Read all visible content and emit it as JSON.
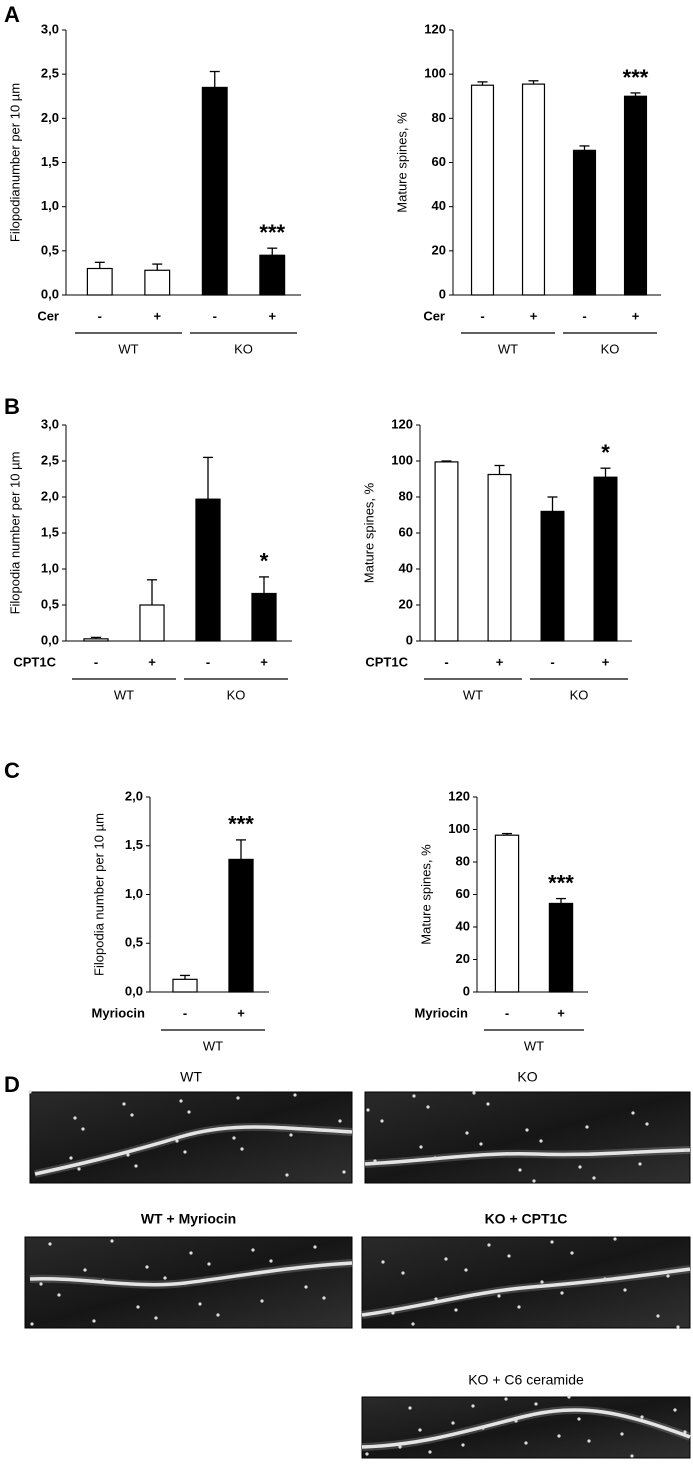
{
  "panel_labels": [
    "A",
    "B",
    "C",
    "D"
  ],
  "chart_data": [
    {
      "type": "bar",
      "ylabel": "Filopodianumber per 10 µm",
      "treatment": "Cer",
      "categories": [
        "-",
        "+",
        "-",
        "+"
      ],
      "group_labels": [
        "WT",
        "WT",
        "KO",
        "KO"
      ],
      "values": [
        0.3,
        0.28,
        2.35,
        0.45
      ],
      "errors": [
        0.07,
        0.07,
        0.18,
        0.08
      ],
      "significance": [
        null,
        null,
        null,
        "***"
      ],
      "colors": [
        "#ffffff",
        "#ffffff",
        "#000000",
        "#000000"
      ],
      "ylim": [
        0,
        3
      ],
      "yticks": [
        {
          "value": 0,
          "label": "0,0"
        },
        {
          "value": 0.5,
          "label": "0,5"
        },
        {
          "value": 1,
          "label": "1,0"
        },
        {
          "value": 1.5,
          "label": "1,5"
        },
        {
          "value": 2,
          "label": "2,0"
        },
        {
          "value": 2.5,
          "label": "2,5"
        },
        {
          "value": 3,
          "label": "3,0"
        }
      ]
    },
    {
      "type": "bar",
      "ylabel": "Mature spines, %",
      "treatment": "Cer",
      "categories": [
        "-",
        "+",
        "-",
        "+"
      ],
      "group_labels": [
        "WT",
        "WT",
        "KO",
        "KO"
      ],
      "values": [
        95,
        95.5,
        65.5,
        90
      ],
      "errors": [
        1.5,
        1.5,
        2,
        1.5
      ],
      "significance": [
        null,
        null,
        null,
        "***"
      ],
      "colors": [
        "#ffffff",
        "#ffffff",
        "#000000",
        "#000000"
      ],
      "ylim": [
        0,
        120
      ],
      "yticks": [
        0,
        20,
        40,
        60,
        80,
        100,
        120
      ]
    },
    {
      "type": "bar",
      "ylabel": "Filopodia number per 10 µm",
      "treatment": "CPT1C",
      "categories": [
        "-",
        "+",
        "-",
        "+"
      ],
      "group_labels": [
        "WT",
        "WT",
        "KO",
        "KO"
      ],
      "values": [
        0.03,
        0.5,
        1.97,
        0.66
      ],
      "errors": [
        0.02,
        0.35,
        0.58,
        0.23
      ],
      "significance": [
        null,
        null,
        null,
        "*"
      ],
      "colors": [
        "#ffffff",
        "#ffffff",
        "#000000",
        "#000000"
      ],
      "ylim": [
        0,
        3
      ],
      "yticks": [
        {
          "value": 0,
          "label": "0,0"
        },
        {
          "value": 0.5,
          "label": "0,5"
        },
        {
          "value": 1,
          "label": "1,0"
        },
        {
          "value": 1.5,
          "label": "1,5"
        },
        {
          "value": 2,
          "label": "2,0"
        },
        {
          "value": 2.5,
          "label": "2,5"
        },
        {
          "value": 3,
          "label": "3,0"
        }
      ]
    },
    {
      "type": "bar",
      "ylabel": "Mature spines, %",
      "treatment": "CPT1C",
      "categories": [
        "-",
        "+",
        "-",
        "+"
      ],
      "group_labels": [
        "WT",
        "WT",
        "KO",
        "KO"
      ],
      "values": [
        99.5,
        92.5,
        72,
        91
      ],
      "errors": [
        0.5,
        5,
        8,
        5
      ],
      "significance": [
        null,
        null,
        null,
        "*"
      ],
      "colors": [
        "#ffffff",
        "#ffffff",
        "#000000",
        "#000000"
      ],
      "ylim": [
        0,
        120
      ],
      "yticks": [
        0,
        20,
        40,
        60,
        80,
        100,
        120
      ]
    },
    {
      "type": "bar",
      "ylabel": "Filopodia number per 10 µm",
      "treatment": "Myriocin",
      "categories": [
        "-",
        "+"
      ],
      "group_labels": [
        "WT",
        "WT"
      ],
      "values": [
        0.13,
        1.36
      ],
      "errors": [
        0.04,
        0.2
      ],
      "significance": [
        null,
        "***"
      ],
      "colors": [
        "#ffffff",
        "#000000"
      ],
      "ylim": [
        0,
        2
      ],
      "yticks": [
        {
          "value": 0,
          "label": "0,0"
        },
        {
          "value": 0.5,
          "label": "0,5"
        },
        {
          "value": 1,
          "label": "1,0"
        },
        {
          "value": 1.5,
          "label": "1,5"
        },
        {
          "value": 2,
          "label": "2,0"
        }
      ]
    },
    {
      "type": "bar",
      "ylabel": "Mature spines, %",
      "treatment": "Myriocin",
      "categories": [
        "-",
        "+"
      ],
      "group_labels": [
        "WT",
        "WT"
      ],
      "values": [
        96.5,
        54.5
      ],
      "errors": [
        1,
        3
      ],
      "significance": [
        null,
        "***"
      ],
      "colors": [
        "#ffffff",
        "#000000"
      ],
      "ylim": [
        0,
        120
      ],
      "yticks": [
        0,
        20,
        40,
        60,
        80,
        100,
        120
      ]
    }
  ],
  "images": [
    {
      "caption": "WT"
    },
    {
      "caption": "KO"
    },
    {
      "caption": "WT + Myriocin"
    },
    {
      "caption": "KO + CPT1C"
    },
    {
      "caption": "KO + C6 ceramide"
    }
  ]
}
